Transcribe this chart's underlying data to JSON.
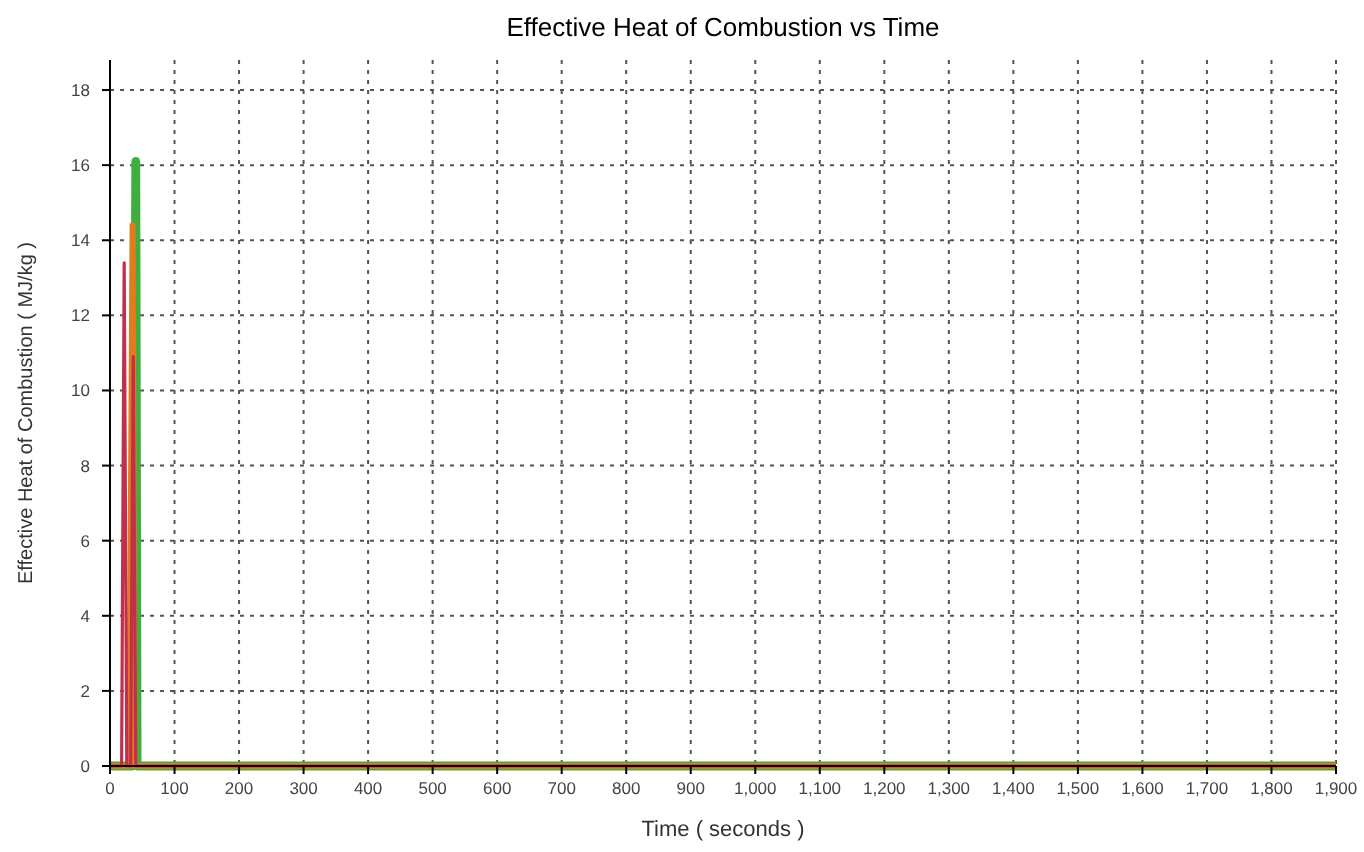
{
  "chart_data": {
    "type": "line",
    "title": "Effective Heat of Combustion vs Time",
    "xlabel": "Time ( seconds )",
    "ylabel": "Effective Heat of Combustion ( MJ/kg )",
    "xlim": [
      0,
      1900
    ],
    "ylim": [
      0,
      18.8
    ],
    "xticks": [
      0,
      100,
      200,
      300,
      400,
      500,
      600,
      700,
      800,
      900,
      {
        "value": 1000,
        "label": "1,000"
      },
      {
        "value": 1100,
        "label": "1,100"
      },
      {
        "value": 1200,
        "label": "1,200"
      },
      {
        "value": 1300,
        "label": "1,300"
      },
      {
        "value": 1400,
        "label": "1,400"
      },
      {
        "value": 1500,
        "label": "1,500"
      },
      {
        "value": 1600,
        "label": "1,600"
      },
      {
        "value": 1700,
        "label": "1,700"
      },
      {
        "value": 1800,
        "label": "1,800"
      },
      {
        "value": 1900,
        "label": "1,900"
      }
    ],
    "yticks": [
      0,
      2,
      4,
      6,
      8,
      10,
      12,
      14,
      16,
      18
    ],
    "grid": true,
    "line_style": "solid",
    "marker": "none",
    "series": [
      {
        "color": "#3fae3f",
        "x": [
          0,
          35,
          40,
          42,
          1900
        ],
        "values": [
          0,
          0,
          16.1,
          0,
          0
        ]
      },
      {
        "color": "#e07b20",
        "x": [
          0,
          30,
          35,
          38,
          1900
        ],
        "values": [
          0,
          0,
          14.4,
          0,
          0
        ]
      },
      {
        "color": "#c0304a",
        "x": [
          0,
          18,
          22,
          26,
          32,
          36,
          40,
          1900
        ],
        "values": [
          0,
          0,
          13.4,
          0,
          0,
          10.9,
          0,
          0
        ]
      }
    ]
  }
}
